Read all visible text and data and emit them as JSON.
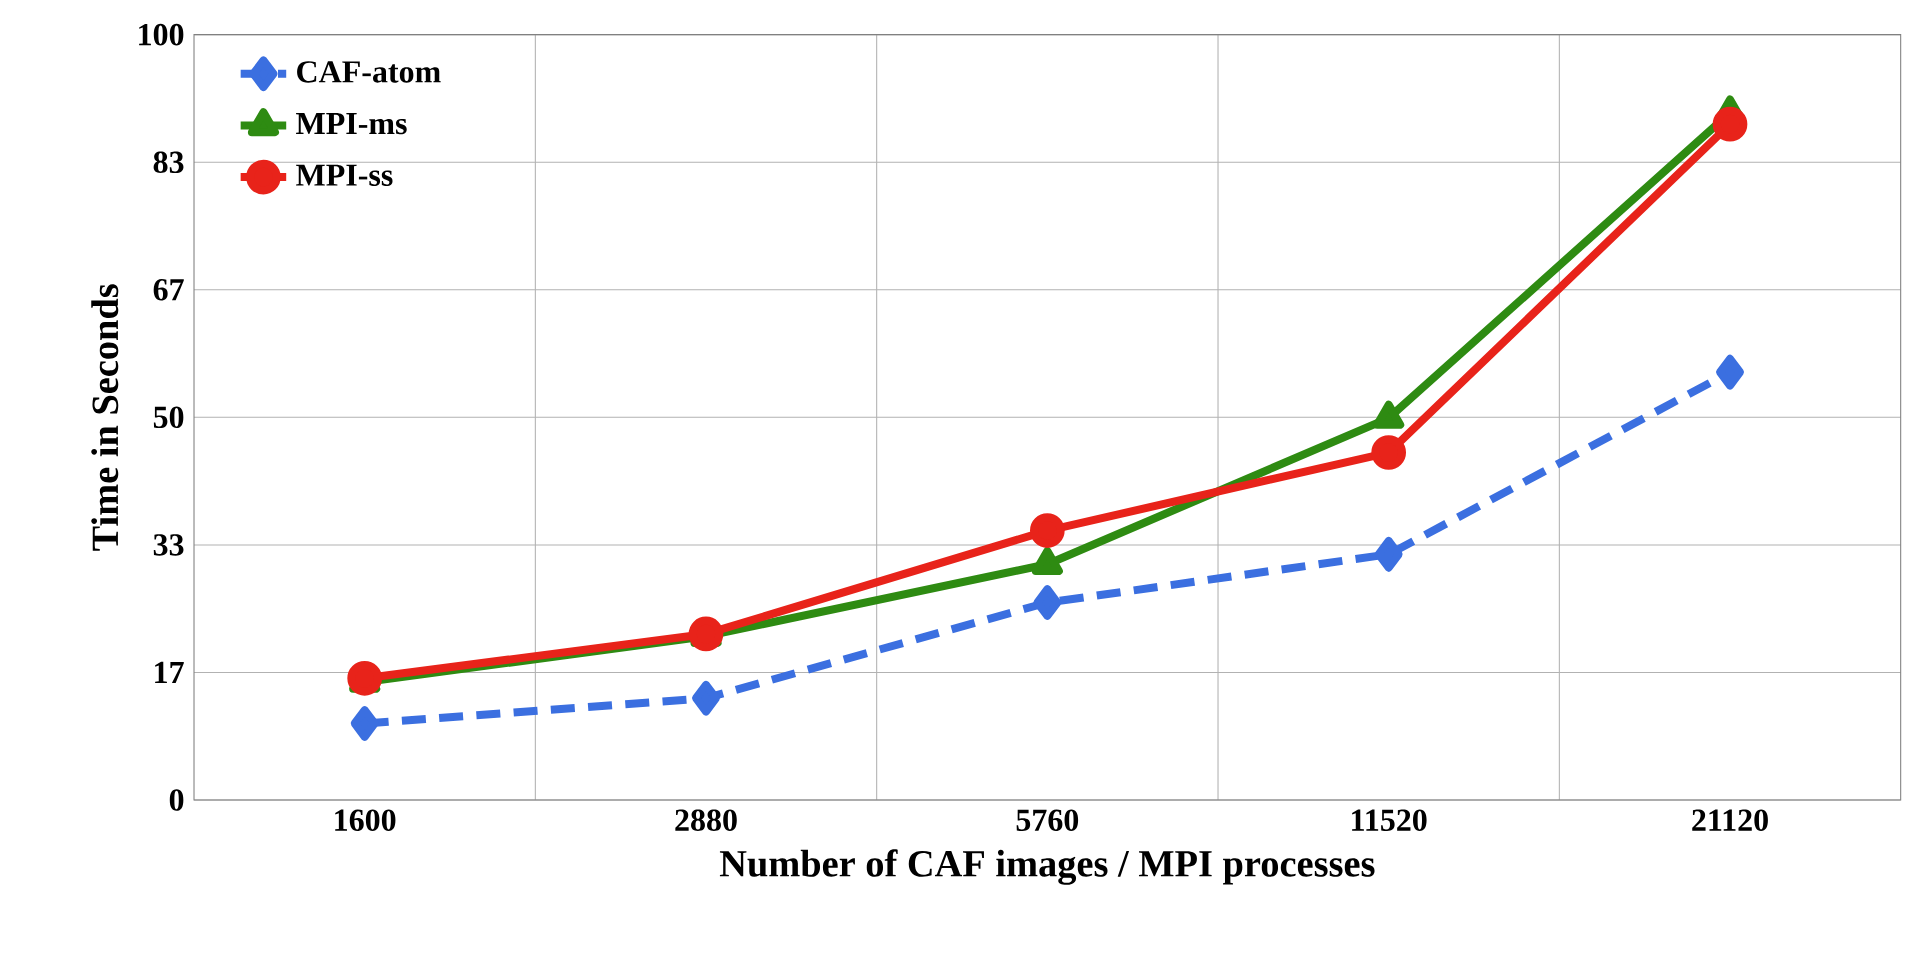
{
  "chart_data": {
    "type": "line",
    "xlabel": "Number of CAF images / MPI processes",
    "ylabel": "Time in Seconds",
    "categories": [
      "1600",
      "2880",
      "5760",
      "11520",
      "21120"
    ],
    "ylim": [
      0,
      100
    ],
    "yticks": [
      0,
      {
        "value": 16.67,
        "label": "17"
      },
      {
        "value": 33.33,
        "label": "33"
      },
      50,
      {
        "value": 66.67,
        "label": "67"
      },
      {
        "value": 83.33,
        "label": "83"
      },
      100
    ],
    "grid": true,
    "legend": "top left",
    "series": [
      {
        "name": "CAF-atom",
        "color": "#3b6fe0",
        "values": [
          10,
          13.3,
          25.8,
          32.1,
          55.9
        ],
        "marker": "diamond",
        "line_style": "dashed"
      },
      {
        "name": "MPI-ms",
        "color": "#2e8b12",
        "values": [
          15.4,
          21.4,
          30.8,
          49.9,
          89.8
        ],
        "marker": "triangle",
        "line_style": "solid"
      },
      {
        "name": "MPI-ss",
        "color": "#e8231a",
        "values": [
          15.9,
          21.7,
          35.2,
          45.4,
          88.3
        ],
        "marker": "circle",
        "line_style": "solid"
      }
    ]
  }
}
